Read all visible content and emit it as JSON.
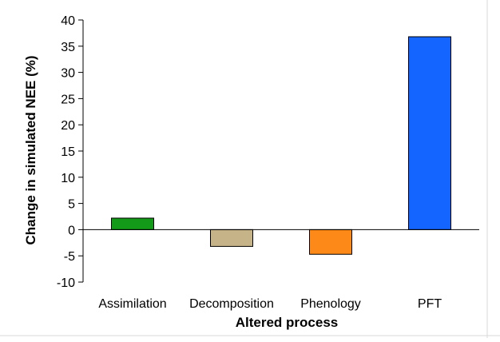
{
  "chart_data": {
    "type": "bar",
    "title": "",
    "xlabel": "Altered process",
    "ylabel": "Change in simulated NEE (%)",
    "categories": [
      "Assimilation",
      "Decomposition",
      "Phenology",
      "PFT"
    ],
    "values": [
      2.2,
      -3.2,
      -4.7,
      36.8
    ],
    "colors": [
      "#129a18",
      "#c6b387",
      "#fd8a18",
      "#1464ff"
    ],
    "ylim": [
      -10,
      40
    ],
    "yticks": [
      "-10",
      "-5",
      "0",
      "5",
      "10",
      "15",
      "20",
      "25",
      "30",
      "35",
      "40"
    ],
    "grid": false,
    "legend": "none"
  }
}
